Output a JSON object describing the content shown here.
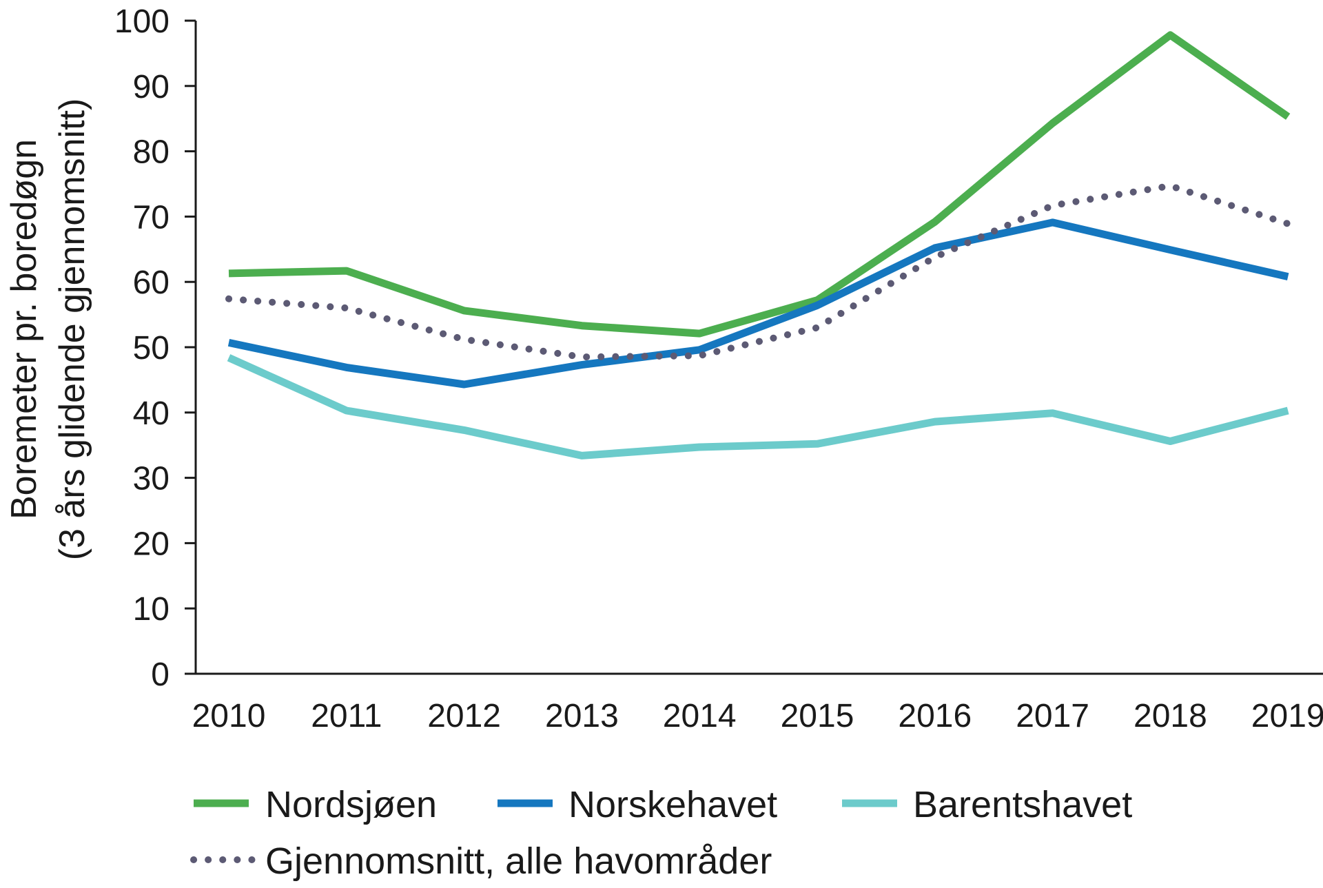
{
  "chart_data": {
    "type": "line",
    "title": "",
    "xlabel": "",
    "ylabel_lines": [
      "Boremeter pr. boredøgn",
      "(3 års glidende gjennomsnitt)"
    ],
    "x": [
      "2010",
      "2011",
      "2012",
      "2013",
      "2014",
      "2015",
      "2016",
      "2017",
      "2018",
      "2019"
    ],
    "ylim": [
      0,
      100
    ],
    "yticks": [
      0,
      10,
      20,
      30,
      40,
      50,
      60,
      70,
      80,
      90,
      100
    ],
    "grid": false,
    "legend_position": "bottom",
    "series": [
      {
        "name": "Nordsjøen",
        "color": "#4cae4f",
        "style": "solid",
        "values": [
          61.3,
          61.7,
          55.6,
          53.3,
          52.1,
          57.2,
          69.2,
          84.3,
          97.8,
          85.3
        ]
      },
      {
        "name": "Norskehavet",
        "color": "#1577bf",
        "style": "solid",
        "values": [
          50.7,
          46.9,
          44.3,
          47.3,
          49.6,
          56.4,
          65.2,
          69.1,
          64.9,
          60.8
        ]
      },
      {
        "name": "Barentshavet",
        "color": "#6ccbcb",
        "style": "solid",
        "values": [
          48.4,
          40.3,
          37.3,
          33.4,
          34.7,
          35.2,
          38.6,
          39.9,
          35.6,
          40.3
        ]
      },
      {
        "name": "Gjennomsnitt, alle havområder",
        "color": "#5c5a74",
        "style": "dotted",
        "values": [
          57.4,
          56.0,
          51.2,
          48.5,
          48.7,
          53.0,
          63.8,
          71.7,
          74.7,
          68.9
        ]
      }
    ]
  }
}
